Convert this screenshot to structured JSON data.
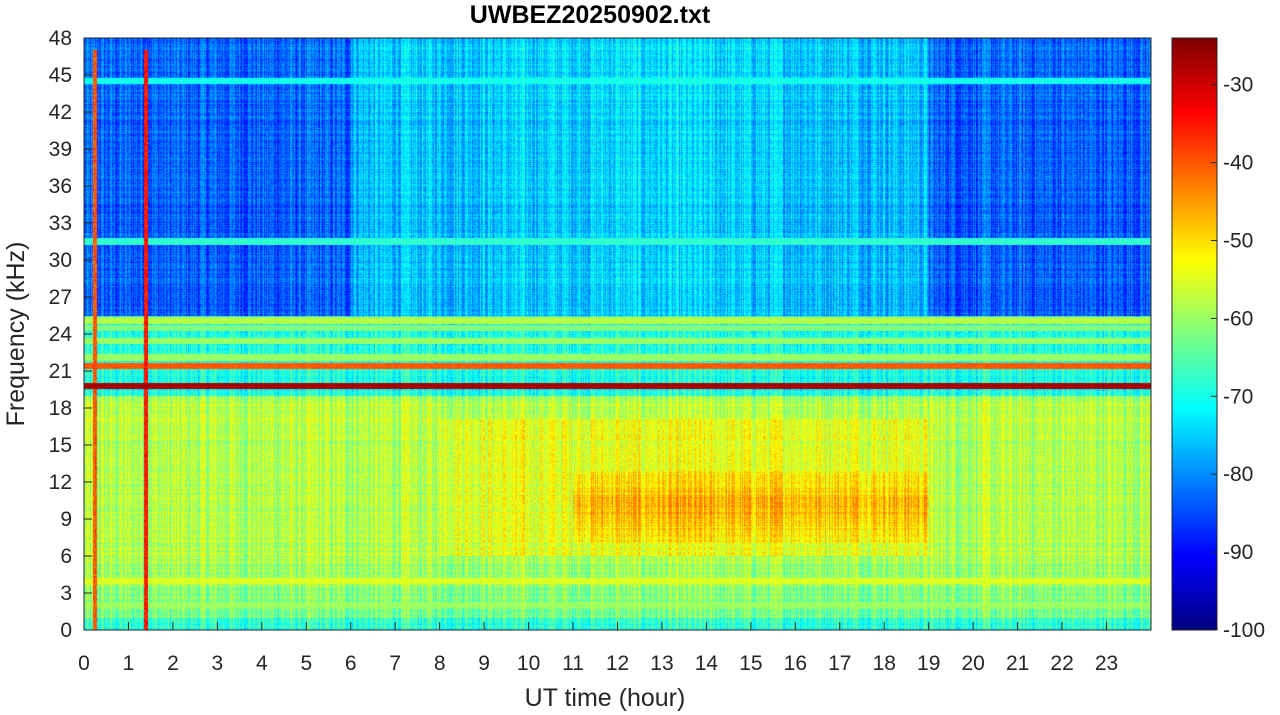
{
  "chart_data": {
    "type": "heatmap",
    "title": "UWBEZ20250902.txt",
    "xlabel": "UT time (hour)",
    "ylabel": "Frequency (kHz)",
    "xlim": [
      0,
      24
    ],
    "ylim": [
      0,
      48
    ],
    "x_ticks": [
      0,
      1,
      2,
      3,
      4,
      5,
      6,
      7,
      8,
      9,
      10,
      11,
      12,
      13,
      14,
      15,
      16,
      17,
      18,
      19,
      20,
      21,
      22,
      23
    ],
    "y_ticks": [
      0,
      3,
      6,
      9,
      12,
      15,
      18,
      21,
      24,
      27,
      30,
      33,
      36,
      39,
      42,
      45,
      48
    ],
    "colorbar": {
      "colormap": "jet",
      "clim": [
        -100,
        -24
      ],
      "ticks": [
        -100,
        -90,
        -80,
        -70,
        -60,
        -50,
        -40,
        -30
      ]
    },
    "regions": [
      {
        "name": "background below 19 kHz",
        "freq_range": [
          0,
          19
        ],
        "approx_level": -55
      },
      {
        "name": "background above 25 kHz",
        "freq_range": [
          25,
          48
        ],
        "approx_level": -82
      },
      {
        "name": "daytime enhancement",
        "time_range": [
          11,
          19
        ],
        "freq_range": [
          7,
          13
        ],
        "approx_level": -44
      }
    ],
    "horizontal_lines": [
      {
        "freq": 19.8,
        "approx_level": -27
      },
      {
        "freq": 21.4,
        "approx_level": -40
      },
      {
        "freq": 22.1,
        "approx_level": -60
      },
      {
        "freq": 23.4,
        "approx_level": -60
      },
      {
        "freq": 24.5,
        "approx_level": -62
      },
      {
        "freq": 25.1,
        "approx_level": -58
      },
      {
        "freq": 4.0,
        "approx_level": -55
      },
      {
        "freq": 2.0,
        "approx_level": -60
      },
      {
        "freq": 31.5,
        "approx_level": -68
      },
      {
        "freq": 44.5,
        "approx_level": -70
      }
    ],
    "vertical_lines": [
      {
        "time": 0.25,
        "approx_level": -40
      },
      {
        "time": 1.4,
        "approx_level": -35
      }
    ]
  }
}
